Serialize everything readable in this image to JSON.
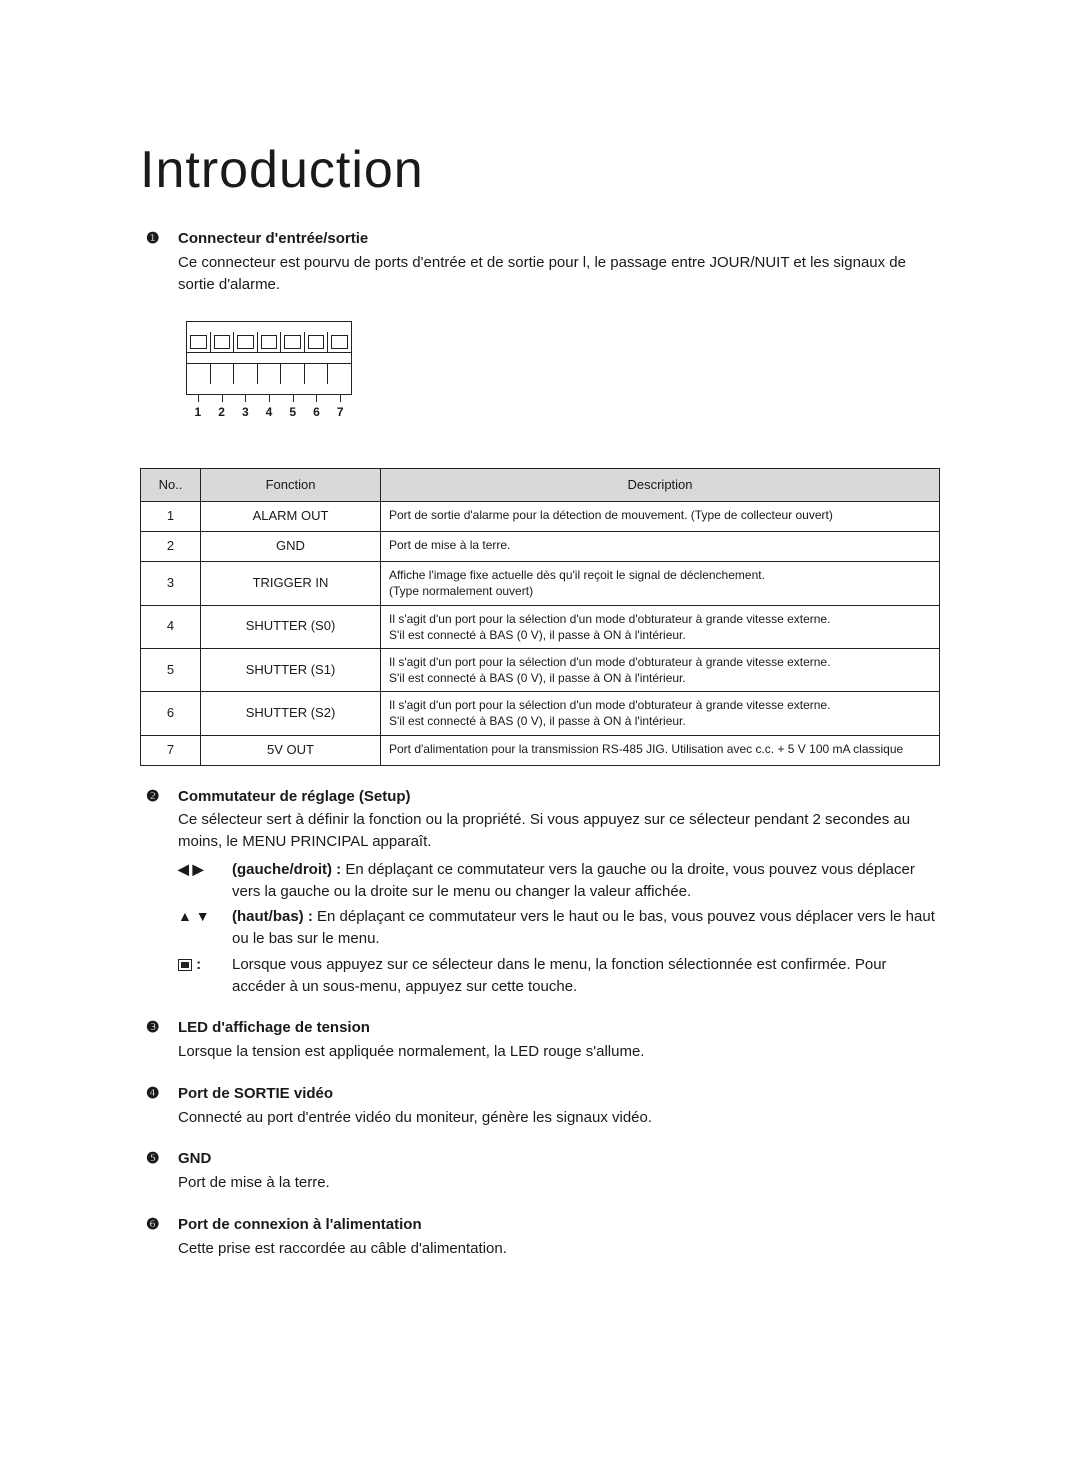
{
  "title": "Introduction",
  "items": [
    {
      "marker": "❶",
      "title": "Connecteur d'entrée/sortie",
      "text": "Ce connecteur est pourvu de ports d'entrée et de sortie pour l, le passage entre JOUR/NUIT et les signaux de sortie d'alarme."
    },
    {
      "marker": "❷",
      "title": "Commutateur de réglage (Setup)",
      "text": "Ce sélecteur sert à définir la fonction ou la propriété. Si vous appuyez sur ce sélecteur pendant 2 secondes au moins, le MENU PRINCIPAL apparaît.",
      "switch": {
        "lr_glyph": "◀ ▶",
        "lr_label": "(gauche/droit) :",
        "lr_text": "En déplaçant ce commutateur vers la gauche ou la droite, vous pouvez vous déplacer vers la gauche ou la droite sur le menu ou changer la valeur affichée.",
        "ud_glyph": "▲ ▼",
        "ud_label": "(haut/bas) :",
        "ud_text": "En déplaçant ce commutateur vers le haut ou le bas, vous pouvez vous déplacer vers le haut ou le bas sur le menu.",
        "center_text": "Lorsque vous appuyez sur ce sélecteur dans le menu, la fonction sélectionnée est confirmée. Pour accéder à un sous-menu, appuyez sur cette touche."
      }
    },
    {
      "marker": "❸",
      "title": "LED d'affichage de tension",
      "text": "Lorsque la tension est appliquée normalement, la LED rouge s'allume."
    },
    {
      "marker": "❹",
      "title": "Port de SORTIE vidéo",
      "text": "Connecté au port d'entrée vidéo du moniteur, génère les signaux vidéo."
    },
    {
      "marker": "❺",
      "title": "GND",
      "text": "Port de mise à la terre."
    },
    {
      "marker": "❻",
      "title": "Port de connexion à l'alimentation",
      "text": "Cette prise est raccordée au câble d'alimentation."
    }
  ],
  "connector": {
    "numbers": [
      "1",
      "2",
      "3",
      "4",
      "5",
      "6",
      "7"
    ]
  },
  "table": {
    "head_no": "No..",
    "head_fn": "Fonction",
    "head_desc": "Description",
    "rows": [
      {
        "no": "1",
        "fn": "ALARM OUT",
        "desc": "Port de sortie d'alarme pour la détection de mouvement. (Type de collecteur ouvert)"
      },
      {
        "no": "2",
        "fn": "GND",
        "desc": "Port de mise à la terre."
      },
      {
        "no": "3",
        "fn": "TRIGGER IN",
        "desc": "Affiche l'image fixe actuelle dès qu'il reçoit le signal de déclenchement.\n(Type normalement ouvert)"
      },
      {
        "no": "4",
        "fn": "SHUTTER (S0)",
        "desc": "Il s'agit d'un port pour la sélection d'un mode d'obturateur à grande vitesse externe.\nS'il est connecté à BAS (0 V), il passe à ON à l'intérieur."
      },
      {
        "no": "5",
        "fn": "SHUTTER (S1)",
        "desc": "Il s'agit d'un port pour la sélection d'un mode d'obturateur à grande vitesse externe.\nS'il est connecté à BAS (0 V), il passe à ON à l'intérieur."
      },
      {
        "no": "6",
        "fn": "SHUTTER (S2)",
        "desc": "Il s'agit d'un port pour la sélection d'un mode d'obturateur à grande vitesse externe.\nS'il est connecté à BAS (0 V), il passe à ON à l'intérieur."
      },
      {
        "no": "7",
        "fn": "5V OUT",
        "desc": "Port d'alimentation pour la transmission RS-485 JIG. Utilisation avec c.c. + 5 V 100 mA classique"
      }
    ]
  }
}
